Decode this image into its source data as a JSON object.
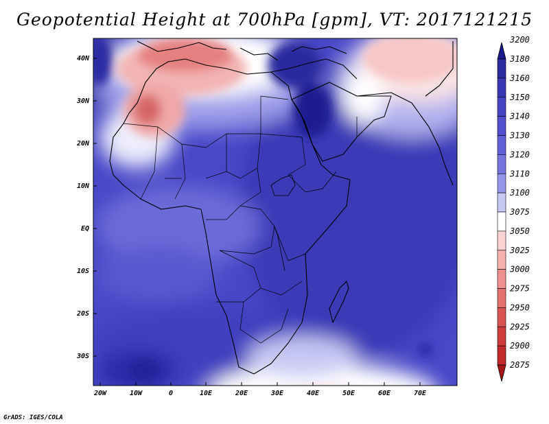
{
  "title": "Geopotential Height at 700hPa [gpm], VT: 2017121215",
  "credit": "GrADS: IGES/COLA",
  "map": {
    "lat_labels": [
      "40N",
      "30N",
      "20N",
      "10N",
      "EQ",
      "10S",
      "20S",
      "30S"
    ],
    "lon_labels": [
      "20W",
      "10W",
      "0",
      "10E",
      "20E",
      "30E",
      "40E",
      "50E",
      "60E",
      "70E"
    ],
    "extent": {
      "lon": [
        -23,
        80
      ],
      "lat": [
        -37,
        45
      ]
    }
  },
  "colorbar": {
    "levels": [
      "3200",
      "3180",
      "3160",
      "3150",
      "3140",
      "3130",
      "3120",
      "3110",
      "3100",
      "3075",
      "3050",
      "3025",
      "3000",
      "2975",
      "2950",
      "2925",
      "2900",
      "2875"
    ],
    "colors": [
      "#1a1a8c",
      "#2b2ba0",
      "#3737b3",
      "#4343c3",
      "#5050cf",
      "#6060d8",
      "#7575e0",
      "#9494ea",
      "#c8c8f4",
      "#ffffff",
      "#fbd3d3",
      "#f5b0b0",
      "#ee9090",
      "#e47070",
      "#da5353",
      "#cf3c3c",
      "#c02a2a",
      "#a51616"
    ]
  }
}
